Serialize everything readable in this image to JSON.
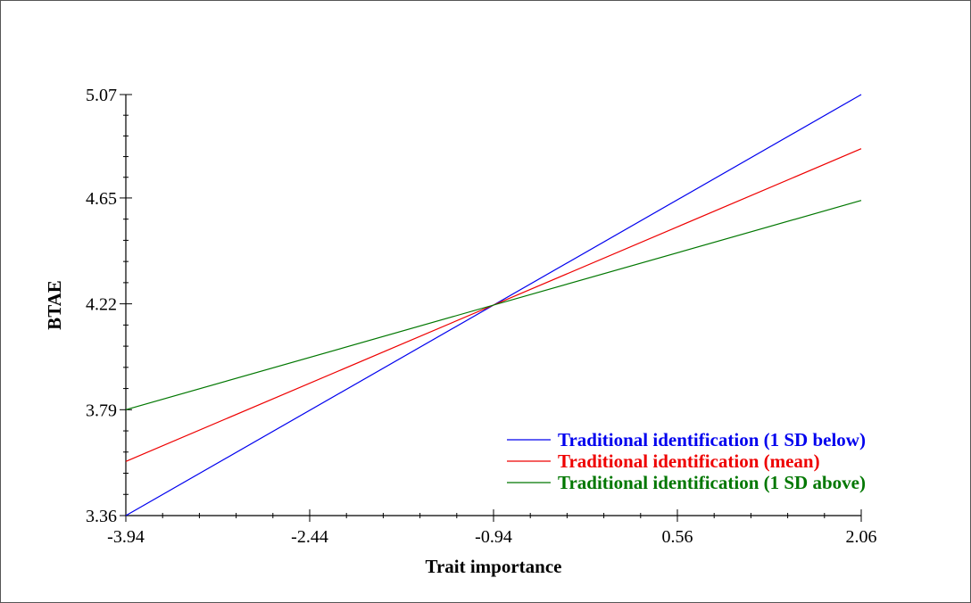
{
  "chart_data": {
    "type": "line",
    "xlabel": "Trait importance",
    "ylabel": "BTAE",
    "xlim": [
      -3.94,
      2.06
    ],
    "ylim": [
      3.36,
      5.07
    ],
    "x_ticks": [
      "-3.94",
      "-2.44",
      "-0.94",
      "0.56",
      "2.06"
    ],
    "y_ticks": [
      "3.36",
      "3.79",
      "4.22",
      "4.65",
      "5.07"
    ],
    "legend_position": "bottom-right",
    "grid": false,
    "series": [
      {
        "name": "Traditional identification (1 SD below)",
        "color": "#0000ee",
        "x": [
          -3.94,
          2.06
        ],
        "y": [
          3.36,
          5.07
        ]
      },
      {
        "name": "Traditional identification (mean)",
        "color": "#ee0000",
        "x": [
          -3.94,
          2.06
        ],
        "y": [
          3.58,
          4.85
        ]
      },
      {
        "name": "Traditional identification (1 SD above)",
        "color": "#007700",
        "x": [
          -3.94,
          2.06
        ],
        "y": [
          3.79,
          4.64
        ]
      }
    ]
  }
}
